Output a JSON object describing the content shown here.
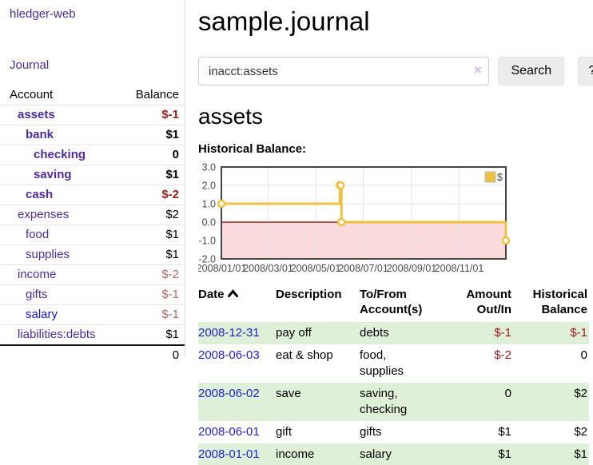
{
  "app": {
    "brand": "hledger-web"
  },
  "colors": {
    "link_purple": "#4e2a9e",
    "link_blue": "#2222cc",
    "negative_red": "#9b1b1b",
    "negative_soft_red": "#b16a6a",
    "row_stripe_green": "#dff0d8",
    "series_gold": "#edc240",
    "negative_region_pink": "#fadada",
    "zero_line_red": "#8b0000"
  },
  "sidebar": {
    "journal_link": "Journal",
    "accounts_table": {
      "headers": [
        "Account",
        "Balance"
      ],
      "rows": [
        {
          "name": "assets",
          "balance": "$-1",
          "depth": 1,
          "bold": true,
          "neg": true
        },
        {
          "name": "bank",
          "balance": "$1",
          "depth": 2,
          "bold": true
        },
        {
          "name": "checking",
          "balance": "0",
          "depth": 3,
          "bold": true
        },
        {
          "name": "saving",
          "balance": "$1",
          "depth": 3,
          "bold": true
        },
        {
          "name": "cash",
          "balance": "$-2",
          "depth": 2,
          "bold": true,
          "neg": true
        },
        {
          "name": "expenses",
          "balance": "$2",
          "depth": 1
        },
        {
          "name": "food",
          "balance": "$1",
          "depth": 2
        },
        {
          "name": "supplies",
          "balance": "$1",
          "depth": 2
        },
        {
          "name": "income",
          "balance": "$-2",
          "depth": 1,
          "neg": true
        },
        {
          "name": "gifts",
          "balance": "$-1",
          "depth": 2,
          "neg": true
        },
        {
          "name": "salary",
          "balance": "$-1",
          "depth": 2,
          "neg": true,
          "unvisited": true
        },
        {
          "name": "liabilities:debts",
          "balance": "$1",
          "depth": 1
        }
      ],
      "total": "0"
    }
  },
  "main": {
    "title": "sample.journal",
    "search": {
      "value": "inacct:assets",
      "clear_icon": "×",
      "button_label": "Search",
      "help_label": "?"
    },
    "account_heading": "assets",
    "chart_title": "Historical Balance:",
    "register_table": {
      "headers": [
        "Date",
        "Description",
        "To/From Account(s)",
        "Amount Out/In",
        "Historical Balance"
      ],
      "rows": [
        {
          "date": "2008-12-31",
          "description": "pay off",
          "accounts": "debts",
          "amount": "$-1",
          "balance": "$-1",
          "amount_neg": true,
          "balance_neg": true
        },
        {
          "date": "2008-06-03",
          "description": "eat & shop",
          "accounts": "food, supplies",
          "amount": "$-2",
          "balance": "0",
          "amount_neg": true
        },
        {
          "date": "2008-06-02",
          "description": "save",
          "accounts": "saving, checking",
          "amount": "0",
          "balance": "$2"
        },
        {
          "date": "2008-06-01",
          "description": "gift",
          "accounts": "gifts",
          "amount": "$1",
          "balance": "$2"
        },
        {
          "date": "2008-01-01",
          "description": "income",
          "accounts": "salary",
          "amount": "$1",
          "balance": "$1"
        }
      ]
    }
  },
  "chart_data": {
    "type": "line",
    "title": "Historical Balance:",
    "step": true,
    "series": [
      {
        "name": "$",
        "color": "#edc240",
        "points": [
          [
            "2008-01-01",
            1
          ],
          [
            "2008-06-01",
            2
          ],
          [
            "2008-06-02",
            2
          ],
          [
            "2008-06-03",
            0
          ],
          [
            "2008-12-31",
            -1
          ]
        ]
      }
    ],
    "xlim": [
      "2008-01-01",
      "2008-12-31"
    ],
    "ylim": [
      -2,
      3
    ],
    "yticks": [
      3.0,
      2.0,
      1.0,
      0.0,
      -1.0,
      -2.0
    ],
    "xticks": [
      "2008/01/01",
      "2008/03/01",
      "2008/05/01",
      "2008/07/01",
      "2008/09/01",
      "2008/11/01"
    ],
    "legend_position": "top-right",
    "grid": true,
    "negative_region_color": "#fadada",
    "zero_line_color": "#8b0000"
  }
}
